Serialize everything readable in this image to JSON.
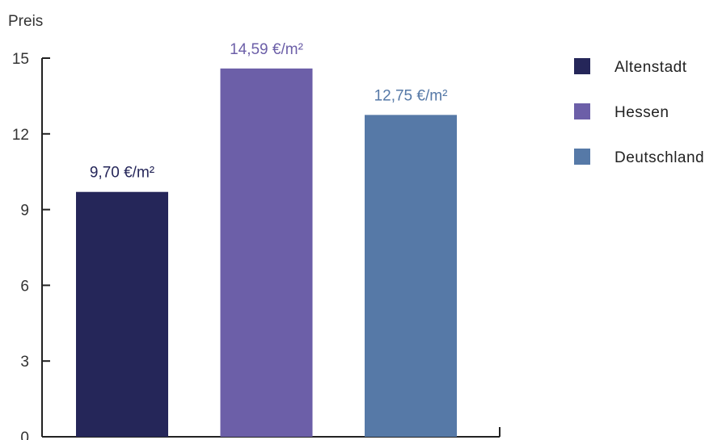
{
  "chart_data": {
    "type": "bar",
    "ylabel": "Preis",
    "ylim": [
      0,
      15
    ],
    "yticks": [
      0,
      3,
      6,
      9,
      12,
      15
    ],
    "categories": [
      "Altenstadt",
      "Hessen",
      "Deutschland"
    ],
    "values": [
      9.7,
      14.59,
      12.75
    ],
    "value_labels": [
      "9,70 €/m²",
      "14,59 €/m²",
      "12,75 €/m²"
    ],
    "colors": [
      "#252659",
      "#6c5fa8",
      "#5679a7"
    ],
    "legend": {
      "placement": "right",
      "entries": [
        "Altenstadt",
        "Hessen",
        "Deutschland"
      ]
    },
    "grid": false
  }
}
